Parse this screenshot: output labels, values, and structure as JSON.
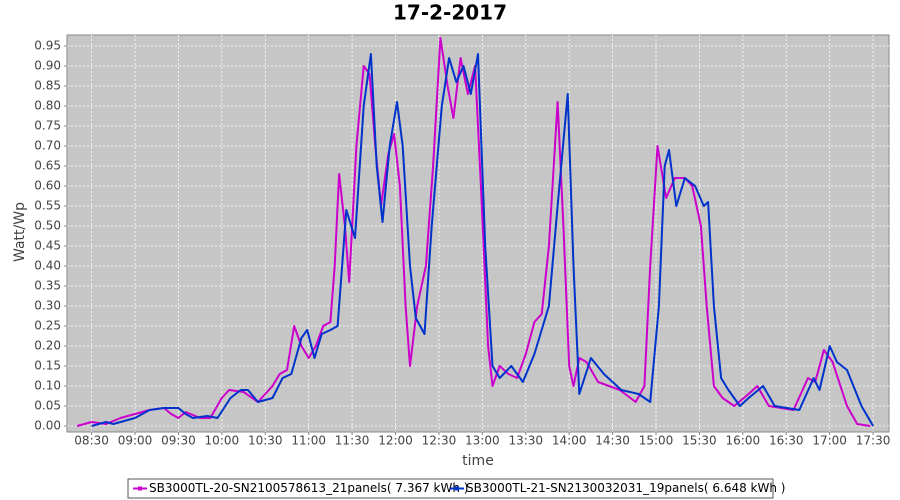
{
  "chart_data": {
    "type": "line",
    "title": "17-2-2017",
    "xlabel": "time",
    "ylabel": "Watt/Wp",
    "xlim": [
      "08:13",
      "17:41"
    ],
    "xticks": [
      "08:30",
      "09:00",
      "09:30",
      "10:00",
      "10:30",
      "11:00",
      "11:30",
      "12:00",
      "12:30",
      "13:00",
      "13:30",
      "14:00",
      "14:30",
      "15:00",
      "15:30",
      "16:00",
      "16:30",
      "17:00",
      "17:30"
    ],
    "ylim": [
      -0.015,
      0.9775
    ],
    "yticks": [
      {
        "value": 0,
        "label": "0.00"
      },
      0.05,
      {
        "value": 0.1,
        "label": "0.10"
      },
      0.15,
      {
        "value": 0.2,
        "label": "0.20"
      },
      0.25,
      {
        "value": 0.3,
        "label": "0.30"
      },
      0.35,
      {
        "value": 0.4,
        "label": "0.40"
      },
      0.45,
      {
        "value": 0.5,
        "label": "0.50"
      },
      0.55,
      {
        "value": 0.6,
        "label": "0.60"
      },
      0.65,
      {
        "value": 0.7,
        "label": "0.70"
      },
      0.75,
      {
        "value": 0.8,
        "label": "0.80"
      },
      0.85,
      {
        "value": 0.9,
        "label": "0.90"
      },
      0.95
    ],
    "grid": true,
    "legend": "bottom",
    "series": [
      {
        "name": "SB3000TL-20-SN2100578613_21panels( 7.367 kWh )",
        "color": "#cc00cc",
        "x": [
          "08:20",
          "08:30",
          "08:40",
          "08:50",
          "09:00",
          "09:10",
          "09:20",
          "09:25",
          "09:30",
          "09:35",
          "09:45",
          "09:52",
          "10:00",
          "10:05",
          "10:15",
          "10:25",
          "10:35",
          "10:40",
          "10:45",
          "10:50",
          "10:55",
          "11:00",
          "11:05",
          "11:10",
          "11:15",
          "11:18",
          "11:21",
          "11:25",
          "11:28",
          "11:33",
          "11:38",
          "11:42",
          "11:46",
          "11:50",
          "11:55",
          "11:59",
          "12:03",
          "12:07",
          "12:10",
          "12:15",
          "12:21",
          "12:26",
          "12:31",
          "12:36",
          "12:40",
          "12:45",
          "12:50",
          "12:55",
          "12:59",
          "13:04",
          "13:07",
          "13:12",
          "13:18",
          "13:24",
          "13:30",
          "13:36",
          "13:41",
          "13:46",
          "13:52",
          "13:56",
          "14:00",
          "14:03",
          "14:07",
          "14:12",
          "14:20",
          "14:35",
          "14:46",
          "14:52",
          "14:56",
          "15:01",
          "15:07",
          "15:13",
          "15:20",
          "15:25",
          "15:31",
          "15:35",
          "15:40",
          "15:46",
          "15:54",
          "16:04",
          "16:10",
          "16:18",
          "16:35",
          "16:45",
          "16:50",
          "16:56",
          "17:02",
          "17:12",
          "17:19",
          "17:28"
        ],
        "values": [
          0.0,
          0.01,
          0.005,
          0.02,
          0.03,
          0.04,
          0.045,
          0.03,
          0.02,
          0.035,
          0.02,
          0.02,
          0.07,
          0.09,
          0.085,
          0.06,
          0.1,
          0.13,
          0.14,
          0.25,
          0.2,
          0.17,
          0.2,
          0.25,
          0.26,
          0.4,
          0.63,
          0.5,
          0.36,
          0.7,
          0.9,
          0.88,
          0.7,
          0.55,
          0.68,
          0.73,
          0.6,
          0.3,
          0.15,
          0.3,
          0.4,
          0.65,
          0.97,
          0.85,
          0.77,
          0.92,
          0.83,
          0.9,
          0.6,
          0.2,
          0.1,
          0.15,
          0.13,
          0.12,
          0.18,
          0.26,
          0.28,
          0.45,
          0.81,
          0.5,
          0.15,
          0.1,
          0.17,
          0.16,
          0.11,
          0.09,
          0.06,
          0.1,
          0.4,
          0.7,
          0.57,
          0.62,
          0.62,
          0.6,
          0.5,
          0.3,
          0.1,
          0.07,
          0.05,
          0.08,
          0.1,
          0.05,
          0.04,
          0.12,
          0.11,
          0.19,
          0.16,
          0.05,
          0.005,
          0.0
        ]
      },
      {
        "name": "SB3000TL-21-SN2130032031_19panels( 6.648 kWh )",
        "color": "#0033cc",
        "x": [
          "08:30",
          "08:40",
          "08:45",
          "09:00",
          "09:10",
          "09:20",
          "09:30",
          "09:35",
          "09:40",
          "09:50",
          "09:57",
          "10:06",
          "10:13",
          "10:18",
          "10:25",
          "10:35",
          "10:42",
          "10:48",
          "10:55",
          "10:59",
          "11:04",
          "11:09",
          "11:15",
          "11:20",
          "11:26",
          "11:32",
          "11:38",
          "11:43",
          "11:47",
          "11:51",
          "11:56",
          "12:01",
          "12:05",
          "12:10",
          "12:14",
          "12:20",
          "12:25",
          "12:32",
          "12:37",
          "12:42",
          "12:47",
          "12:52",
          "12:57",
          "13:02",
          "13:07",
          "13:12",
          "13:20",
          "13:28",
          "13:36",
          "13:46",
          "13:52",
          "13:59",
          "14:03",
          "14:07",
          "14:15",
          "14:24",
          "14:36",
          "14:48",
          "14:56",
          "15:02",
          "15:06",
          "15:09",
          "15:14",
          "15:20",
          "15:27",
          "15:33",
          "15:36",
          "15:40",
          "15:45",
          "15:50",
          "15:58",
          "16:04",
          "16:14",
          "16:22",
          "16:39",
          "16:49",
          "16:53",
          "17:00",
          "17:05",
          "17:12",
          "17:22",
          "17:30"
        ],
        "values": [
          0.0,
          0.01,
          0.005,
          0.02,
          0.04,
          0.045,
          0.045,
          0.03,
          0.02,
          0.025,
          0.02,
          0.07,
          0.09,
          0.09,
          0.06,
          0.07,
          0.12,
          0.13,
          0.22,
          0.24,
          0.17,
          0.23,
          0.24,
          0.25,
          0.54,
          0.47,
          0.8,
          0.93,
          0.65,
          0.51,
          0.7,
          0.81,
          0.7,
          0.4,
          0.27,
          0.23,
          0.5,
          0.8,
          0.92,
          0.86,
          0.9,
          0.83,
          0.93,
          0.45,
          0.15,
          0.12,
          0.15,
          0.11,
          0.18,
          0.3,
          0.55,
          0.83,
          0.4,
          0.08,
          0.17,
          0.13,
          0.09,
          0.08,
          0.06,
          0.3,
          0.65,
          0.69,
          0.55,
          0.62,
          0.6,
          0.55,
          0.56,
          0.3,
          0.12,
          0.09,
          0.05,
          0.07,
          0.1,
          0.05,
          0.04,
          0.12,
          0.09,
          0.2,
          0.16,
          0.14,
          0.05,
          0.0
        ]
      }
    ]
  }
}
